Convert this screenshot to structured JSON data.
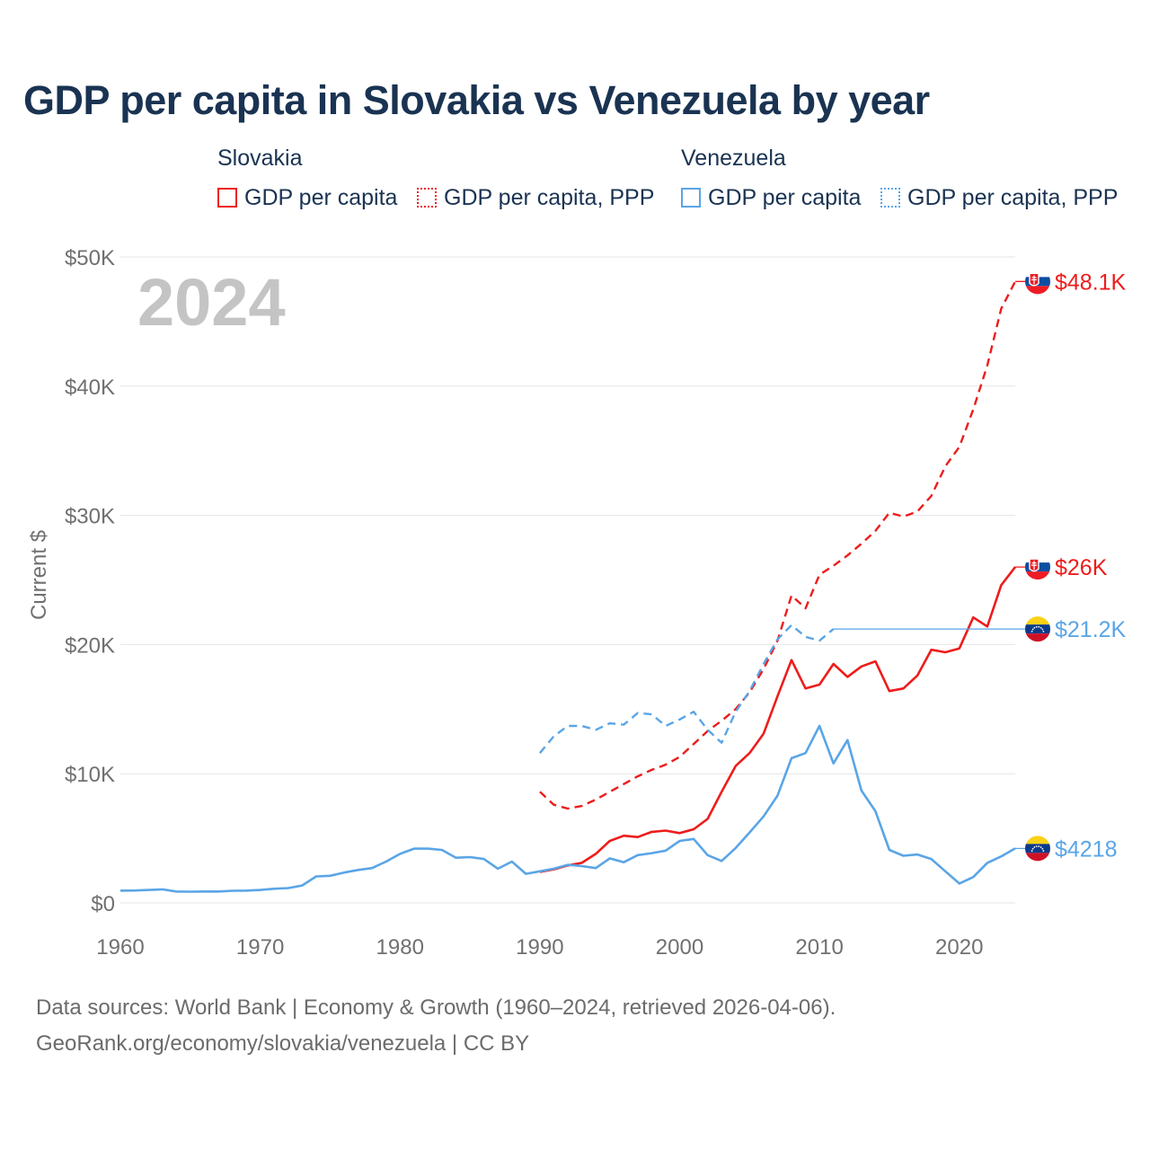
{
  "title": "GDP per capita in Slovakia vs Venezuela by year",
  "legend": {
    "groups": [
      {
        "country": "Slovakia",
        "color": "#ee1c1c",
        "items": [
          {
            "label": "GDP per capita",
            "style": "solid"
          },
          {
            "label": "GDP per capita, PPP",
            "style": "dotted"
          }
        ]
      },
      {
        "country": "Venezuela",
        "color": "#5aa5e6",
        "items": [
          {
            "label": "GDP per capita",
            "style": "solid"
          },
          {
            "label": "GDP per capita, PPP",
            "style": "dotted"
          }
        ]
      }
    ]
  },
  "year_watermark": "2024",
  "footer": {
    "line1": "Data sources: World Bank | Economy & Growth (1960–2024, retrieved 2026-04-06).",
    "line2": "GeoRank.org/economy/slovakia/venezuela | CC BY"
  },
  "chart_data": {
    "type": "line",
    "title": "GDP per capita in Slovakia vs Venezuela by year",
    "xlabel": "",
    "ylabel": "Current $",
    "xlim": [
      1960,
      2024
    ],
    "ylim": [
      0,
      50000
    ],
    "x_ticks": [
      1960,
      1970,
      1980,
      1990,
      2000,
      2010,
      2020
    ],
    "y_ticks": [
      {
        "value": 0,
        "label": "$0"
      },
      {
        "value": 10000,
        "label": "$10K"
      },
      {
        "value": 20000,
        "label": "$20K"
      },
      {
        "value": 30000,
        "label": "$30K"
      },
      {
        "value": 40000,
        "label": "$40K"
      },
      {
        "value": 50000,
        "label": "$50K"
      }
    ],
    "grid": true,
    "series": [
      {
        "name": "Slovakia GDP per capita, PPP",
        "country": "Slovakia",
        "color": "#ee1c1c",
        "dash": "dashed",
        "end_label": "$48.1K",
        "end_value": 48100,
        "flag": "slovakia",
        "x": [
          1990,
          1991,
          1992,
          1993,
          1994,
          1995,
          1996,
          1997,
          1998,
          1999,
          2000,
          2001,
          2002,
          2003,
          2004,
          2005,
          2006,
          2007,
          2008,
          2009,
          2010,
          2011,
          2012,
          2013,
          2014,
          2015,
          2016,
          2017,
          2018,
          2019,
          2020,
          2021,
          2022,
          2023,
          2024
        ],
        "values": [
          8600,
          7600,
          7300,
          7500,
          8000,
          8600,
          9200,
          9800,
          10300,
          10700,
          11300,
          12300,
          13300,
          14100,
          15000,
          16300,
          18100,
          20300,
          23800,
          22800,
          25400,
          26100,
          26900,
          27800,
          28800,
          30200,
          29900,
          30300,
          31500,
          33800,
          35300,
          38200,
          41600,
          46000,
          48100
        ]
      },
      {
        "name": "Slovakia GDP per capita",
        "country": "Slovakia",
        "color": "#ee1c1c",
        "dash": "solid",
        "end_label": "$26K",
        "end_value": 26000,
        "flag": "slovakia",
        "x": [
          1990,
          1991,
          1992,
          1993,
          1994,
          1995,
          1996,
          1997,
          1998,
          1999,
          2000,
          2001,
          2002,
          2003,
          2004,
          2005,
          2006,
          2007,
          2008,
          2009,
          2010,
          2011,
          2012,
          2013,
          2014,
          2015,
          2016,
          2017,
          2018,
          2019,
          2020,
          2021,
          2022,
          2023,
          2024
        ],
        "values": [
          2400,
          2600,
          2900,
          3100,
          3800,
          4800,
          5200,
          5100,
          5500,
          5600,
          5400,
          5700,
          6500,
          8600,
          10600,
          11600,
          13100,
          16000,
          18800,
          16600,
          16900,
          18500,
          17500,
          18300,
          18700,
          16400,
          16600,
          17600,
          19600,
          19400,
          19700,
          22100,
          21400,
          24600,
          26000
        ]
      },
      {
        "name": "Venezuela GDP per capita, PPP",
        "country": "Venezuela",
        "color": "#5aa5e6",
        "dash": "dashed",
        "end_label": "$21.2K",
        "end_value": 21200,
        "flag": "venezuela",
        "x": [
          1990,
          1991,
          1992,
          1993,
          1994,
          1995,
          1996,
          1997,
          1998,
          1999,
          2000,
          2001,
          2002,
          2003,
          2004,
          2005,
          2006,
          2007,
          2008,
          2009,
          2010,
          2011
        ],
        "values": [
          11600,
          12900,
          13700,
          13700,
          13400,
          13900,
          13800,
          14700,
          14600,
          13700,
          14200,
          14800,
          13400,
          12400,
          14800,
          16400,
          18500,
          20400,
          21500,
          20600,
          20300,
          21200
        ],
        "hold_to": 2024
      },
      {
        "name": "Venezuela GDP per capita",
        "country": "Venezuela",
        "color": "#5aa5e6",
        "dash": "solid",
        "end_label": "$4218",
        "end_value": 4218,
        "flag": "venezuela",
        "x": [
          1960,
          1961,
          1962,
          1963,
          1964,
          1965,
          1966,
          1967,
          1968,
          1969,
          1970,
          1971,
          1972,
          1973,
          1974,
          1975,
          1976,
          1977,
          1978,
          1979,
          1980,
          1981,
          1982,
          1983,
          1984,
          1985,
          1986,
          1987,
          1988,
          1989,
          1990,
          1991,
          1992,
          1993,
          1994,
          1995,
          1996,
          1997,
          1998,
          1999,
          2000,
          2001,
          2002,
          2003,
          2004,
          2005,
          2006,
          2007,
          2008,
          2009,
          2010,
          2011,
          2012,
          2013,
          2014,
          2015,
          2016,
          2017,
          2018,
          2019,
          2020,
          2021,
          2022,
          2023,
          2024
        ],
        "values": [
          950,
          960,
          1000,
          1050,
          880,
          870,
          880,
          880,
          940,
          950,
          1000,
          1100,
          1150,
          1350,
          2050,
          2100,
          2350,
          2550,
          2700,
          3200,
          3800,
          4200,
          4200,
          4100,
          3500,
          3550,
          3400,
          2650,
          3200,
          2250,
          2450,
          2650,
          2950,
          2850,
          2700,
          3450,
          3150,
          3700,
          3850,
          4050,
          4800,
          4950,
          3700,
          3250,
          4250,
          5450,
          6700,
          8300,
          11200,
          11600,
          13700,
          10800,
          12600,
          8700,
          7100,
          4100,
          3650,
          3750,
          3400,
          2450,
          1500,
          2000,
          3100,
          3600,
          4218
        ]
      }
    ]
  }
}
